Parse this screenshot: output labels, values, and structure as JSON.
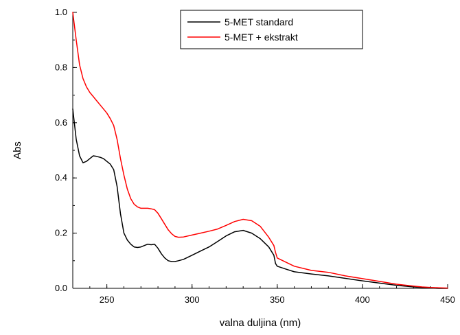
{
  "chart_data": {
    "type": "line",
    "xlabel": "valna duljina (nm)",
    "ylabel": "Abs",
    "xlim": [
      230,
      450
    ],
    "ylim": [
      0.0,
      1.0
    ],
    "xticks": [
      "250",
      "300",
      "350",
      "400",
      "450"
    ],
    "yticks": [
      "0.0",
      "0.2",
      "0.4",
      "0.6",
      "0.8",
      "1.0"
    ],
    "grid": false,
    "legend": {
      "position": "top-right",
      "entries": [
        "5-MET standard",
        "5-MET + ekstrakt"
      ]
    },
    "series": [
      {
        "name": "5-MET standard",
        "color": "#000000",
        "x": [
          230,
          232,
          234,
          236,
          238,
          240,
          242,
          244,
          246,
          248,
          250,
          252,
          254,
          256,
          258,
          260,
          262,
          264,
          266,
          268,
          270,
          272,
          274,
          276,
          278,
          280,
          282,
          284,
          286,
          288,
          290,
          292,
          295,
          300,
          305,
          310,
          315,
          320,
          325,
          330,
          335,
          340,
          345,
          348,
          349,
          350,
          355,
          360,
          370,
          380,
          390,
          400,
          410,
          420,
          430,
          435,
          440,
          445,
          450
        ],
        "y": [
          0.65,
          0.54,
          0.48,
          0.455,
          0.46,
          0.47,
          0.48,
          0.478,
          0.475,
          0.47,
          0.46,
          0.45,
          0.43,
          0.37,
          0.27,
          0.2,
          0.175,
          0.16,
          0.15,
          0.148,
          0.15,
          0.155,
          0.16,
          0.158,
          0.16,
          0.145,
          0.125,
          0.11,
          0.1,
          0.097,
          0.097,
          0.1,
          0.105,
          0.12,
          0.135,
          0.15,
          0.17,
          0.19,
          0.205,
          0.21,
          0.2,
          0.18,
          0.15,
          0.12,
          0.09,
          0.08,
          0.07,
          0.06,
          0.052,
          0.045,
          0.036,
          0.027,
          0.019,
          0.011,
          0.005,
          0.003,
          0.001,
          0.0,
          0.0
        ]
      },
      {
        "name": "5-MET + ekstrakt",
        "color": "#ff0000",
        "x": [
          230,
          232,
          234,
          236,
          238,
          240,
          242,
          244,
          246,
          248,
          250,
          252,
          254,
          256,
          258,
          260,
          262,
          264,
          266,
          268,
          270,
          272,
          274,
          276,
          278,
          280,
          282,
          284,
          286,
          288,
          290,
          292,
          295,
          300,
          305,
          310,
          315,
          320,
          325,
          330,
          335,
          340,
          345,
          348,
          349,
          350,
          355,
          360,
          370,
          380,
          390,
          400,
          410,
          420,
          430,
          435,
          440,
          445,
          450
        ],
        "y": [
          1.0,
          0.9,
          0.81,
          0.76,
          0.73,
          0.71,
          0.695,
          0.68,
          0.665,
          0.65,
          0.635,
          0.615,
          0.59,
          0.54,
          0.47,
          0.41,
          0.36,
          0.325,
          0.305,
          0.295,
          0.29,
          0.29,
          0.29,
          0.288,
          0.285,
          0.272,
          0.252,
          0.232,
          0.212,
          0.198,
          0.188,
          0.185,
          0.186,
          0.193,
          0.2,
          0.207,
          0.215,
          0.228,
          0.242,
          0.25,
          0.245,
          0.225,
          0.185,
          0.155,
          0.13,
          0.11,
          0.095,
          0.08,
          0.065,
          0.058,
          0.045,
          0.035,
          0.025,
          0.015,
          0.008,
          0.005,
          0.003,
          0.002,
          0.001
        ]
      }
    ]
  }
}
